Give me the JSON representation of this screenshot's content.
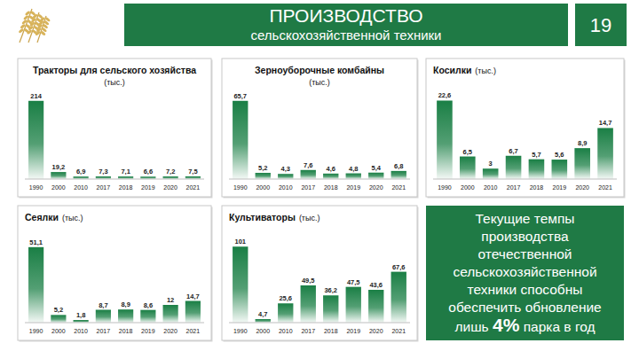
{
  "header": {
    "title": "ПРОИЗВОДСТВО",
    "subtitle": "сельскохозяйственной техники",
    "page": 19
  },
  "chart_data": [
    {
      "type": "bar",
      "title": "Тракторы для сельского хозяйства",
      "subtitle": "(тыс.)",
      "categories": [
        "1990",
        "2000",
        "2010",
        "2017",
        "2018",
        "2019",
        "2020",
        "2021"
      ],
      "values": [
        214,
        19.2,
        6.9,
        7.3,
        7.1,
        6.6,
        7.2,
        7.5
      ],
      "value_labels": [
        "214",
        "19,2",
        "6,9",
        "7,3",
        "7,1",
        "6,6",
        "7,2",
        "7,5"
      ],
      "color": "#1a7f45",
      "ylim": [
        0,
        228
      ],
      "data_labels": true,
      "tick_labels": "x",
      "grid": false
    },
    {
      "type": "bar",
      "title": "Зерноуборочные комбайны",
      "subtitle": "(тыс.)",
      "categories": [
        "1990",
        "2000",
        "2010",
        "2017",
        "2018",
        "2019",
        "2020",
        "2021"
      ],
      "values": [
        65.7,
        5.2,
        4.3,
        7.6,
        4.6,
        4.8,
        5.4,
        6.8
      ],
      "value_labels": [
        "65,7",
        "5,2",
        "4,3",
        "7,6",
        "4,6",
        "4,8",
        "5,4",
        "6,8"
      ],
      "color": "#1a7f45",
      "ylim": [
        0,
        70
      ],
      "data_labels": true,
      "tick_labels": "x",
      "grid": false
    },
    {
      "type": "bar",
      "title": "Косилки",
      "subtitle": "(тыс.)",
      "categories": [
        "1990",
        "2000",
        "2010",
        "2017",
        "2018",
        "2019",
        "2020",
        "2021"
      ],
      "values": [
        22.6,
        6.5,
        3,
        6.7,
        5.7,
        5.6,
        8.9,
        14.7
      ],
      "value_labels": [
        "22,6",
        "6,5",
        "3",
        "6,7",
        "5,7",
        "5,6",
        "8,9",
        "14,7"
      ],
      "color": "#1a7f45",
      "ylim": [
        0,
        24
      ],
      "data_labels": true,
      "tick_labels": "x",
      "grid": false
    },
    {
      "type": "bar",
      "title": "Сеялки",
      "subtitle": "(тыс.)",
      "categories": [
        "1990",
        "2000",
        "2010",
        "2017",
        "2018",
        "2019",
        "2020",
        "2021"
      ],
      "values": [
        51.1,
        5.2,
        1.8,
        8.7,
        8.9,
        8.6,
        12,
        14.7
      ],
      "value_labels": [
        "51,1",
        "5,2",
        "1,8",
        "8,7",
        "8,9",
        "8,6",
        "12",
        "14,7"
      ],
      "color": "#1a7f45",
      "ylim": [
        0,
        54
      ],
      "data_labels": true,
      "tick_labels": "x",
      "grid": false
    },
    {
      "type": "bar",
      "title": "Культиваторы",
      "subtitle": "(тыс.)",
      "categories": [
        "1990",
        "2000",
        "2010",
        "2017",
        "2018",
        "2019",
        "2020",
        "2021"
      ],
      "values": [
        101,
        4.7,
        25.6,
        49.5,
        36.2,
        47.5,
        43.6,
        67.6
      ],
      "value_labels": [
        "101",
        "4,7",
        "25,6",
        "49,5",
        "36,2",
        "47,5",
        "43,6",
        "67,6"
      ],
      "color": "#1a7f45",
      "ylim": [
        0,
        106
      ],
      "data_labels": true,
      "tick_labels": "x",
      "grid": false
    }
  ],
  "note": {
    "text": "Текущие темпы производства отечественной сельскохозяйственной техники способны обеспечить обновление лишь",
    "highlight": "4%",
    "text_after": "парка в год"
  }
}
